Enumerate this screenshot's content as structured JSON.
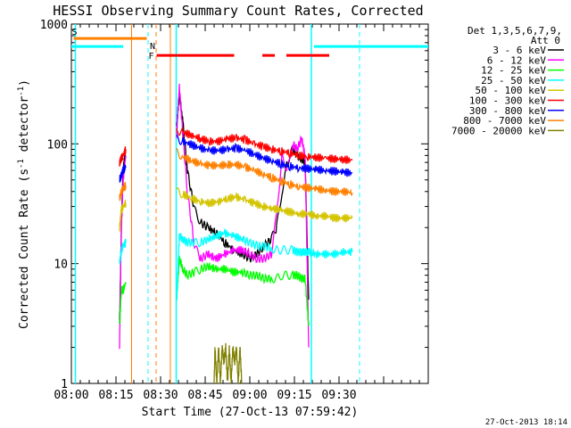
{
  "chart_data": {
    "type": "line",
    "title": "HESSI Observing Summary Count Rates, Corrected",
    "xlabel": "Start Time (27-Oct-13 07:59:42)",
    "ylabel": "Corrected Count Rate (s",
    "ylabel_sup": "-1",
    "ylabel_tail": " detector",
    "ylabel_sup2": "-1",
    "ylabel_close": ")",
    "x_unit": "minutes since 08:00",
    "xlim": [
      0,
      40
    ],
    "ylim": [
      1,
      1000
    ],
    "y_scale": "log",
    "x_ticks": [
      {
        "v": 0,
        "label": "08:00"
      },
      {
        "v": 5,
        "label": "08:15"
      },
      {
        "v": 10,
        "label": "08:30"
      },
      {
        "v": 15,
        "label": "08:45"
      },
      {
        "v": 20,
        "label": "09:00"
      },
      {
        "v": 25,
        "label": "09:15"
      },
      {
        "v": 30,
        "label": "09:30"
      }
    ],
    "y_ticks": [
      {
        "v": 1,
        "label": "1"
      },
      {
        "v": 10,
        "label": "10"
      },
      {
        "v": 100,
        "label": "100"
      },
      {
        "v": 1000,
        "label": "1000"
      }
    ],
    "legend_header": [
      "Det 1,3,5,6,7,9,",
      "Att 0"
    ],
    "legend_placement": "right",
    "footer_date": "27-Oct-2013 18:14",
    "flags": {
      "saa": {
        "label": "S",
        "x": [
          0.25,
          8.45
        ],
        "y": 650,
        "color": "#ff8000"
      },
      "night": {
        "label": "N",
        "x": [
          0,
          5.8,
          27.2,
          40
        ],
        "y": 650,
        "color": "#00ffff"
      },
      "flare": {
        "label": "F",
        "segments": [
          [
            9.55,
            18.25
          ],
          [
            21.4,
            22.8
          ],
          [
            24.1,
            28.9
          ]
        ],
        "y": 650,
        "color": "#ff0000"
      },
      "orange_line": [
        6.75,
        11.1
      ],
      "cyan_lines": [
        0.45,
        11.75,
        26.9
      ],
      "cyan_dashed": [
        8.6,
        32.3
      ],
      "orange_dashed": [
        9.5
      ]
    },
    "series": [
      {
        "name": "3 - 6 keV",
        "color": "#000000",
        "segments": [
          [
            [
              5.4,
              3
            ],
            [
              5.6,
              20
            ],
            [
              5.8,
              60
            ],
            [
              6.1,
              90
            ]
          ],
          [
            [
              11.8,
              140
            ],
            [
              12.1,
              260
            ],
            [
              12.5,
              150
            ],
            [
              13.0,
              60
            ],
            [
              13.8,
              28
            ],
            [
              14.5,
              22
            ],
            [
              15.3,
              20
            ],
            [
              16.2,
              18
            ],
            [
              17.2,
              15
            ],
            [
              18.2,
              13
            ],
            [
              19.2,
              12
            ],
            [
              20.0,
              11
            ],
            [
              20.8,
              12
            ],
            [
              21.6,
              14
            ],
            [
              22.4,
              16
            ],
            [
              23.0,
              20
            ],
            [
              23.6,
              40
            ],
            [
              24.2,
              70
            ],
            [
              24.8,
              90
            ],
            [
              25.3,
              80
            ],
            [
              25.8,
              75
            ],
            [
              26.2,
              70
            ],
            [
              26.6,
              5
            ]
          ]
        ]
      },
      {
        "name": "6 - 12 keV",
        "color": "#ff00ff",
        "segments": [
          [
            [
              5.4,
              2
            ],
            [
              5.6,
              20
            ],
            [
              5.8,
              50
            ],
            [
              6.1,
              80
            ]
          ],
          [
            [
              11.8,
              120
            ],
            [
              12.1,
              300
            ],
            [
              12.5,
              120
            ],
            [
              13.0,
              40
            ],
            [
              13.8,
              14
            ],
            [
              14.5,
              11
            ],
            [
              15.3,
              12
            ],
            [
              16.2,
              11
            ],
            [
              17.2,
              12
            ],
            [
              18.2,
              13
            ],
            [
              19.2,
              13
            ],
            [
              20.0,
              12
            ],
            [
              20.8,
              11
            ],
            [
              21.6,
              11
            ],
            [
              22.4,
              12
            ],
            [
              23.0,
              25
            ],
            [
              23.6,
              80
            ],
            [
              24.2,
              60
            ],
            [
              24.8,
              100
            ],
            [
              25.3,
              90
            ],
            [
              25.8,
              110
            ],
            [
              26.2,
              80
            ],
            [
              26.6,
              2
            ]
          ]
        ]
      },
      {
        "name": "12 - 25 keV",
        "color": "#00ff00",
        "segments": [
          [
            [
              5.4,
              3
            ],
            [
              5.6,
              6
            ],
            [
              5.8,
              6
            ],
            [
              6.1,
              7
            ]
          ],
          [
            [
              11.8,
              5
            ],
            [
              12.1,
              11
            ],
            [
              12.5,
              9
            ],
            [
              13.0,
              8
            ],
            [
              13.8,
              8.5
            ],
            [
              14.5,
              9
            ],
            [
              15.3,
              9.5
            ],
            [
              16.2,
              9
            ],
            [
              17.2,
              9
            ],
            [
              18.2,
              8.5
            ],
            [
              19.2,
              8.5
            ],
            [
              20.0,
              8
            ],
            [
              20.8,
              8
            ],
            [
              21.6,
              7.5
            ],
            [
              22.4,
              7.5
            ],
            [
              23.0,
              7.5
            ],
            [
              23.6,
              8
            ],
            [
              24.2,
              8
            ],
            [
              24.8,
              8
            ],
            [
              25.3,
              8
            ],
            [
              25.8,
              7.5
            ],
            [
              26.2,
              7.5
            ],
            [
              26.6,
              3
            ]
          ]
        ]
      },
      {
        "name": "25 - 50 keV",
        "color": "#00ffff",
        "segments": [
          [
            [
              5.4,
              10
            ],
            [
              5.6,
              13
            ],
            [
              5.8,
              14
            ],
            [
              6.1,
              15
            ]
          ],
          [
            [
              11.8,
              5
            ],
            [
              12.1,
              17
            ],
            [
              12.5,
              16
            ],
            [
              13.0,
              15
            ],
            [
              13.8,
              15
            ],
            [
              14.5,
              15
            ],
            [
              15.3,
              16
            ],
            [
              16.2,
              17
            ],
            [
              17.2,
              18
            ],
            [
              18.2,
              17
            ],
            [
              19.2,
              16
            ],
            [
              20.0,
              15
            ],
            [
              20.8,
              14
            ],
            [
              21.6,
              14
            ],
            [
              22.4,
              13.5
            ],
            [
              23.0,
              13
            ],
            [
              23.6,
              13
            ],
            [
              24.2,
              13
            ],
            [
              24.8,
              13
            ],
            [
              25.3,
              12.5
            ],
            [
              25.8,
              12.5
            ],
            [
              26.2,
              12.5
            ],
            [
              26.6,
              12.5
            ],
            [
              27.5,
              12
            ],
            [
              28.5,
              12
            ],
            [
              29.5,
              12
            ],
            [
              30.5,
              12.5
            ],
            [
              31.5,
              12.5
            ]
          ]
        ]
      },
      {
        "name": "50 - 100 keV",
        "color": "#d4c400",
        "segments": [
          [
            [
              5.4,
              20
            ],
            [
              5.6,
              28
            ],
            [
              5.8,
              30
            ],
            [
              6.1,
              32
            ]
          ],
          [
            [
              11.8,
              40
            ],
            [
              12.5,
              38
            ],
            [
              13.5,
              35
            ],
            [
              14.5,
              33
            ],
            [
              15.5,
              32
            ],
            [
              16.5,
              33
            ],
            [
              17.5,
              35
            ],
            [
              18.5,
              36
            ],
            [
              19.5,
              34
            ],
            [
              20.5,
              32
            ],
            [
              21.5,
              30
            ],
            [
              22.5,
              29
            ],
            [
              23.5,
              28
            ],
            [
              24.5,
              27
            ],
            [
              25.5,
              26
            ],
            [
              26.5,
              26
            ],
            [
              27.5,
              25
            ],
            [
              28.5,
              25
            ],
            [
              29.5,
              24
            ],
            [
              30.5,
              24
            ],
            [
              31.5,
              24
            ]
          ]
        ]
      },
      {
        "name": "100 - 300 keV",
        "color": "#ff0000",
        "segments": [
          [
            [
              5.4,
              70
            ],
            [
              5.6,
              75
            ],
            [
              5.8,
              80
            ],
            [
              6.1,
              90
            ]
          ],
          [
            [
              11.8,
              130
            ],
            [
              12.5,
              125
            ],
            [
              13.5,
              118
            ],
            [
              14.5,
              110
            ],
            [
              15.5,
              105
            ],
            [
              16.5,
              105
            ],
            [
              17.5,
              110
            ],
            [
              18.5,
              112
            ],
            [
              19.5,
              108
            ],
            [
              20.5,
              100
            ],
            [
              21.5,
              95
            ],
            [
              22.5,
              90
            ],
            [
              23.5,
              87
            ],
            [
              24.5,
              84
            ],
            [
              25.5,
              80
            ],
            [
              26.5,
              78
            ],
            [
              27.5,
              77
            ],
            [
              28.5,
              76
            ],
            [
              29.5,
              75
            ],
            [
              30.5,
              74
            ],
            [
              31.5,
              73
            ]
          ]
        ]
      },
      {
        "name": "300 - 800 keV",
        "color": "#0000ff",
        "segments": [
          [
            [
              5.4,
              50
            ],
            [
              5.6,
              55
            ],
            [
              5.8,
              60
            ],
            [
              6.1,
              65
            ]
          ],
          [
            [
              11.8,
              110
            ],
            [
              12.5,
              105
            ],
            [
              13.5,
              98
            ],
            [
              14.5,
              92
            ],
            [
              15.5,
              88
            ],
            [
              16.5,
              88
            ],
            [
              17.5,
              90
            ],
            [
              18.5,
              92
            ],
            [
              19.5,
              88
            ],
            [
              20.5,
              82
            ],
            [
              21.5,
              76
            ],
            [
              22.5,
              72
            ],
            [
              23.5,
              68
            ],
            [
              24.5,
              65
            ],
            [
              25.5,
              63
            ],
            [
              26.5,
              62
            ],
            [
              27.5,
              61
            ],
            [
              28.5,
              60
            ],
            [
              29.5,
              59
            ],
            [
              30.5,
              58
            ],
            [
              31.5,
              57
            ]
          ]
        ]
      },
      {
        "name": "800 - 7000 keV",
        "color": "#ff8000",
        "segments": [
          [
            [
              5.4,
              35
            ],
            [
              5.6,
              40
            ],
            [
              5.8,
              42
            ],
            [
              6.1,
              45
            ]
          ],
          [
            [
              11.8,
              85
            ],
            [
              12.5,
              78
            ],
            [
              13.5,
              72
            ],
            [
              14.5,
              68
            ],
            [
              15.5,
              66
            ],
            [
              16.5,
              66
            ],
            [
              17.5,
              67
            ],
            [
              18.5,
              67
            ],
            [
              19.5,
              64
            ],
            [
              20.5,
              60
            ],
            [
              21.5,
              56
            ],
            [
              22.5,
              52
            ],
            [
              23.5,
              49
            ],
            [
              24.5,
              46
            ],
            [
              25.5,
              44
            ],
            [
              26.5,
              43
            ],
            [
              27.5,
              42
            ],
            [
              28.5,
              41
            ],
            [
              29.5,
              40
            ],
            [
              30.5,
              40
            ],
            [
              31.5,
              39
            ]
          ]
        ]
      },
      {
        "name": "7000 - 20000 keV",
        "color": "#808000",
        "segments": [
          [
            [
              16.0,
              1
            ],
            [
              16.1,
              2
            ],
            [
              16.3,
              1
            ],
            [
              16.5,
              2
            ],
            [
              16.7,
              1
            ],
            [
              16.9,
              2
            ],
            [
              17.1,
              1.5
            ],
            [
              17.3,
              2
            ],
            [
              17.5,
              1
            ],
            [
              17.7,
              2
            ],
            [
              17.9,
              1
            ],
            [
              18.1,
              2
            ],
            [
              18.3,
              1.5
            ],
            [
              18.5,
              2
            ],
            [
              18.7,
              1
            ],
            [
              18.9,
              2
            ],
            [
              19.1,
              1
            ]
          ]
        ]
      }
    ]
  }
}
